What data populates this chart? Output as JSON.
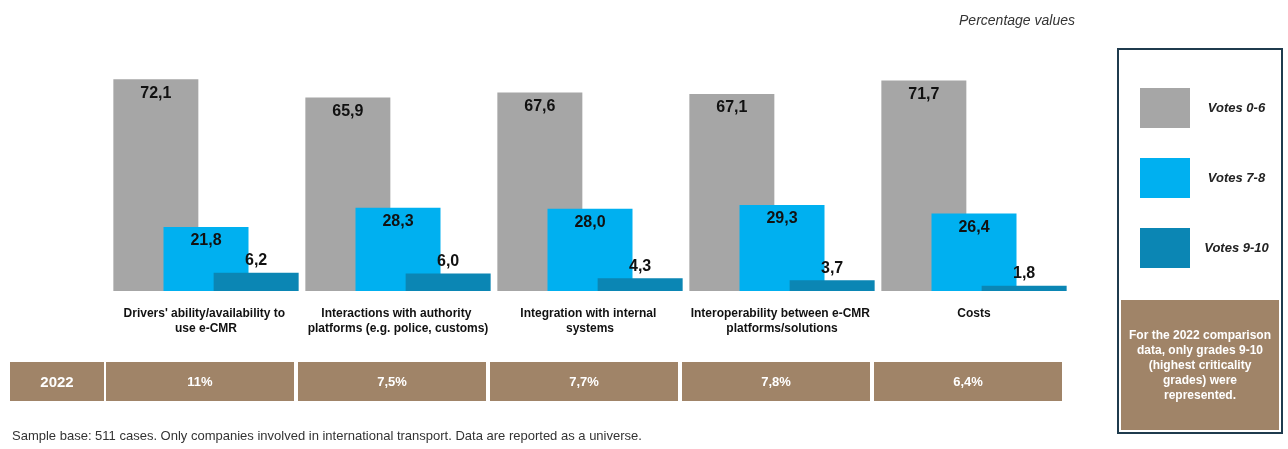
{
  "chart_data": {
    "type": "bar",
    "title": "Percentage values",
    "categories": [
      "Drivers' ability/availability to use e-CMR",
      "Interactions with authority platforms (e.g. police, customs)",
      "Integration with internal systems",
      "Interoperability between e-CMR platforms/solutions",
      "Costs"
    ],
    "series": [
      {
        "name": "Votes 0-6",
        "color": "#a6a6a6",
        "values": [
          72.1,
          65.9,
          67.6,
          67.1,
          71.7
        ],
        "value_labels": [
          "72,1",
          "65,9",
          "67,6",
          "67,1",
          "71,7"
        ]
      },
      {
        "name": "Votes 7-8",
        "color": "#00b0f0",
        "values": [
          21.8,
          28.3,
          28.0,
          29.3,
          26.4
        ],
        "value_labels": [
          "21,8",
          "28,3",
          "28,0",
          "29,3",
          "26,4"
        ]
      },
      {
        "name": "Votes 9-10",
        "color": "#0b86b4",
        "values": [
          6.2,
          6.0,
          4.3,
          3.7,
          1.8
        ],
        "value_labels": [
          "6,2",
          "6,0",
          "4,3",
          "3,7",
          "1,8"
        ]
      }
    ],
    "legend": "right",
    "annotations": [
      "For the 2022 comparison data, only grades 9-10 (highest criticality grades) were represented.",
      "Sample base: 511 cases. Only companies involved in international transport. Data are reported as a universe.",
      "2022",
      "11%",
      "7,5%",
      "7,7%",
      "7,8%",
      "6,4%"
    ]
  }
}
